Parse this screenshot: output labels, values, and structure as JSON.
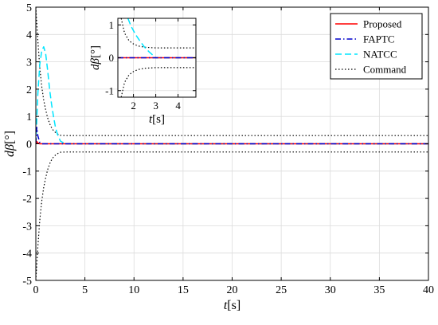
{
  "chart_data": [
    {
      "type": "line",
      "role": "main",
      "xlabel": "t[s]",
      "ylabel": "dβ[°]",
      "xlim": [
        0,
        40
      ],
      "ylim": [
        -5,
        5
      ],
      "xticks": [
        0,
        5,
        10,
        15,
        20,
        25,
        30,
        35,
        40
      ],
      "yticks": [
        -5,
        -4,
        -3,
        -2,
        -1,
        0,
        1,
        2,
        3,
        4,
        5
      ],
      "grid": true,
      "legend": "top-right",
      "series": [
        {
          "name": "Proposed",
          "color": "#ff0000",
          "style": "solid",
          "x": [
            0,
            0.1,
            0.2,
            0.4,
            40
          ],
          "y": [
            0,
            0.08,
            0.03,
            0,
            0
          ]
        },
        {
          "name": "FAPTC",
          "color": "#0000cc",
          "style": "dashdot",
          "x": [
            0,
            0.1,
            0.2,
            0.4,
            0.6,
            40
          ],
          "y": [
            0,
            0.6,
            0.3,
            0.05,
            0,
            0
          ]
        },
        {
          "name": "NATCC",
          "color": "#00e5ff",
          "style": "dashed",
          "x": [
            0,
            0.2,
            0.4,
            0.6,
            0.8,
            1.0,
            1.2,
            1.4,
            1.6,
            1.8,
            2.0,
            2.2,
            2.5,
            3.0,
            40
          ],
          "y": [
            0,
            1.8,
            2.9,
            3.4,
            3.55,
            3.3,
            2.7,
            2.0,
            1.45,
            1.0,
            0.6,
            0.35,
            0.1,
            0,
            0
          ]
        },
        {
          "name": "Command",
          "color": "#000000",
          "style": "dotted",
          "x": [
            0,
            0.2,
            0.4,
            0.6,
            0.8,
            1.0,
            1.2,
            1.5,
            1.8,
            2.1,
            2.5,
            3.0,
            40
          ],
          "y": [
            5,
            3.8,
            2.8,
            2.1,
            1.6,
            1.25,
            0.95,
            0.65,
            0.48,
            0.38,
            0.31,
            0.3,
            0.3
          ]
        },
        {
          "name": "",
          "color": "#000000",
          "style": "dotted",
          "x": [
            0,
            0.2,
            0.4,
            0.6,
            0.8,
            1.0,
            1.2,
            1.5,
            1.8,
            2.1,
            2.5,
            3.0,
            40
          ],
          "y": [
            -5,
            -3.8,
            -2.8,
            -2.1,
            -1.6,
            -1.25,
            -0.95,
            -0.65,
            -0.48,
            -0.38,
            -0.31,
            -0.3,
            -0.3
          ]
        }
      ]
    },
    {
      "type": "line",
      "role": "inset",
      "xlabel": "t[s]",
      "ylabel": "dβ[°]",
      "xlim": [
        1.3,
        4.8
      ],
      "ylim": [
        -1.2,
        1.2
      ],
      "xticks": [
        2,
        3,
        4
      ],
      "yticks": [
        -1,
        0,
        1
      ],
      "grid": true,
      "series": [
        {
          "name": "Proposed",
          "color": "#ff0000",
          "style": "solid",
          "x": [
            1.3,
            4.8
          ],
          "y": [
            0,
            0
          ]
        },
        {
          "name": "FAPTC",
          "color": "#0000cc",
          "style": "dashdot",
          "x": [
            1.3,
            4.8
          ],
          "y": [
            0,
            0
          ]
        },
        {
          "name": "NATCC",
          "color": "#00e5ff",
          "style": "dashed",
          "x": [
            1.75,
            1.9,
            2.1,
            2.3,
            2.5,
            2.7,
            2.9,
            3.0,
            4.8
          ],
          "y": [
            1.2,
            0.95,
            0.7,
            0.5,
            0.32,
            0.18,
            0.06,
            0.0,
            0.0
          ]
        },
        {
          "name": "Command",
          "color": "#000000",
          "style": "dotted",
          "x": [
            1.45,
            1.6,
            1.8,
            2.0,
            2.2,
            2.5,
            3.0,
            4.8
          ],
          "y": [
            1.2,
            0.75,
            0.52,
            0.42,
            0.36,
            0.32,
            0.3,
            0.3
          ]
        },
        {
          "name": "",
          "color": "#000000",
          "style": "dotted",
          "x": [
            1.45,
            1.6,
            1.8,
            2.0,
            2.2,
            2.5,
            3.0,
            4.8
          ],
          "y": [
            -1.2,
            -0.75,
            -0.52,
            -0.42,
            -0.36,
            -0.32,
            -0.3,
            -0.3
          ]
        }
      ]
    }
  ]
}
